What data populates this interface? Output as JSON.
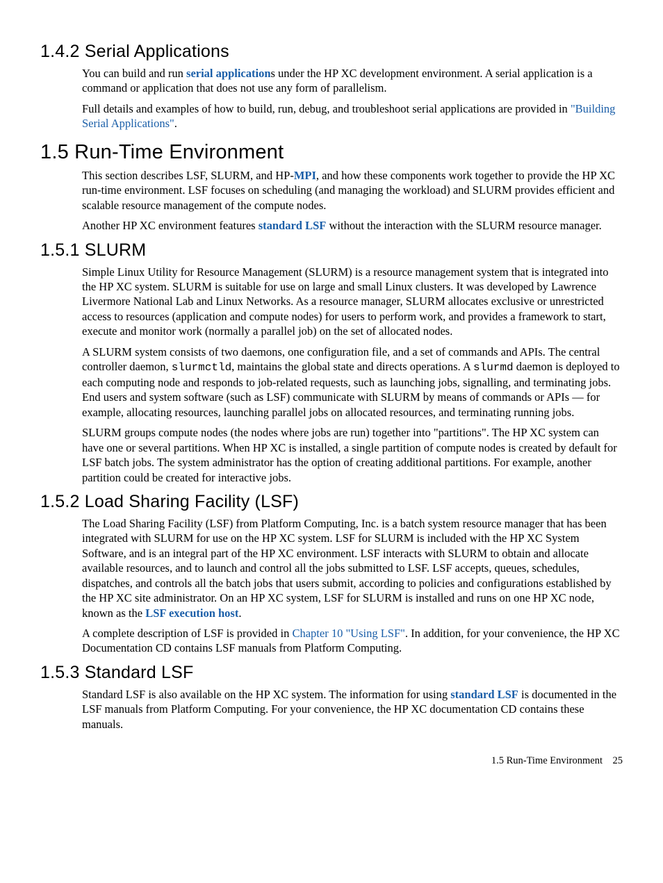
{
  "sections": {
    "s142": {
      "heading": "1.4.2 Serial Applications",
      "p1_a": "You can build and run ",
      "p1_link": "serial application",
      "p1_b": "s under the HP XC development environment. A serial application is a command or application that does not use any form of parallelism.",
      "p2_a": "Full details and examples of how to build, run, debug, and troubleshoot serial applications are provided in ",
      "p2_link": "\"Building Serial Applications\"",
      "p2_b": "."
    },
    "s15": {
      "heading": "1.5 Run-Time Environment",
      "p1_a": "This section describes LSF, SLURM, and HP-",
      "p1_link": "MPI",
      "p1_b": ", and how these components work together to provide the HP XC run-time environment. LSF focuses on scheduling (and managing the workload) and SLURM provides efficient and scalable resource management of the compute nodes.",
      "p2_a": "Another HP XC environment features ",
      "p2_link": "standard LSF",
      "p2_b": " without the interaction with the SLURM resource manager."
    },
    "s151": {
      "heading": "1.5.1 SLURM",
      "p1": "Simple Linux Utility for Resource Management (SLURM) is a resource management system that is integrated into the HP XC system. SLURM is suitable for use on large and small Linux clusters. It was developed by Lawrence Livermore National Lab and Linux Networks. As a resource manager, SLURM allocates exclusive or unrestricted access to resources (application and compute nodes) for users to perform work, and provides a framework to start, execute and monitor work (normally a parallel job) on the set of allocated nodes.",
      "p2_a": "A SLURM system consists of two daemons, one configuration file, and a set of commands and APIs. The central controller daemon, ",
      "p2_code1": "slurmctld",
      "p2_b": ", maintains the global state and directs operations. A ",
      "p2_code2": "slurmd",
      "p2_c": " daemon is deployed to each computing node and responds to job-related requests, such as launching jobs, signalling, and terminating jobs. End users and system software (such as LSF) communicate with SLURM by means of commands or APIs — for example, allocating resources, launching parallel jobs on allocated resources, and terminating running jobs.",
      "p3": "SLURM groups compute nodes (the nodes where jobs are run) together into \"partitions\". The HP XC system can have one or several partitions. When HP XC is installed, a single partition of compute nodes is created by default for LSF batch jobs. The system administrator has the option of creating additional partitions. For example, another partition could be created for interactive jobs."
    },
    "s152": {
      "heading": "1.5.2 Load Sharing Facility (LSF)",
      "p1_a": "The Load Sharing Facility (LSF) from Platform Computing, Inc. is a batch system resource manager that has been integrated with SLURM for use on the HP XC system. LSF for SLURM is included with the HP XC System Software, and is an integral part of the HP XC environment. LSF interacts with SLURM to obtain and allocate available resources, and to launch and control all the jobs submitted to LSF. LSF accepts, queues, schedules, dispatches, and controls all the batch jobs that users submit, according to policies and configurations established by the HP XC site administrator. On an HP XC system, LSF for SLURM is installed and runs on one HP XC node, known as the ",
      "p1_link": "LSF execution host",
      "p1_b": ".",
      "p2_a": "A complete description of LSF is provided in ",
      "p2_link": "Chapter 10 \"Using LSF\"",
      "p2_b": ". In addition, for your convenience, the HP XC Documentation CD contains LSF manuals from Platform Computing."
    },
    "s153": {
      "heading": "1.5.3 Standard LSF",
      "p1_a": "Standard LSF is also available on the HP XC system. The information for using ",
      "p1_link": "standard LSF",
      "p1_b": " is documented in the LSF manuals from Platform Computing. For your convenience, the HP XC documentation CD contains these manuals."
    }
  },
  "footer": {
    "section": "1.5 Run-Time Environment",
    "page": "25"
  }
}
